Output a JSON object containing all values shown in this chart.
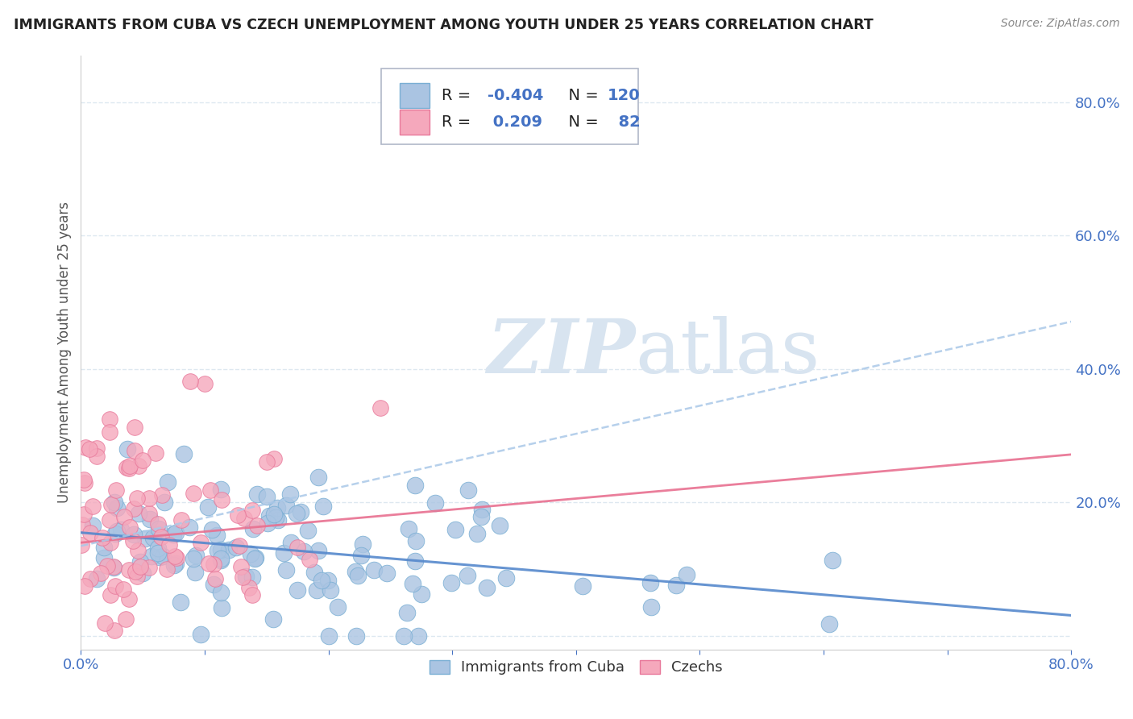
{
  "title": "IMMIGRANTS FROM CUBA VS CZECH UNEMPLOYMENT AMONG YOUTH UNDER 25 YEARS CORRELATION CHART",
  "source": "Source: ZipAtlas.com",
  "ylabel": "Unemployment Among Youth under 25 years",
  "xlim": [
    0.0,
    0.8
  ],
  "ylim": [
    -0.02,
    0.87
  ],
  "xticks": [
    0.0,
    0.1,
    0.2,
    0.3,
    0.4,
    0.5,
    0.6,
    0.7,
    0.8
  ],
  "xticklabels": [
    "0.0%",
    "",
    "",
    "",
    "",
    "",
    "",
    "",
    "80.0%"
  ],
  "ytick_positions": [
    0.0,
    0.2,
    0.4,
    0.6,
    0.8
  ],
  "ytick_labels": [
    "",
    "20.0%",
    "40.0%",
    "60.0%",
    "80.0%"
  ],
  "cuba_R": -0.404,
  "cuba_N": 120,
  "czech_R": 0.209,
  "czech_N": 82,
  "cuba_color": "#aac4e2",
  "czech_color": "#f5a8bc",
  "cuba_edge_color": "#7aafd4",
  "czech_edge_color": "#e8789a",
  "cuba_line_color": "#5588cc",
  "czech_line_color": "#e87090",
  "czech_dashed_color": "#aac8e8",
  "background_color": "#ffffff",
  "grid_color": "#dde8f0",
  "watermark_color": "#d8e4f0",
  "seed": 42,
  "cuba_intercept": 0.155,
  "cuba_slope": -0.155,
  "czech_intercept": 0.14,
  "czech_slope": 0.165,
  "czech_dashed_slope": 0.42
}
